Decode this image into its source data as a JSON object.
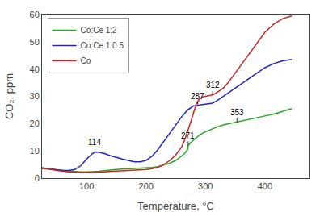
{
  "chart_data": {
    "type": "line",
    "title": "",
    "xlabel": "Temperature, °C",
    "ylabel": "CO₂, ppm",
    "xlim": [
      25,
      475
    ],
    "ylim": [
      0,
      60
    ],
    "xticks": [
      100,
      200,
      300,
      400
    ],
    "yticks": [
      0,
      10,
      20,
      30,
      40,
      50,
      60
    ],
    "grid": false,
    "legend": "upper left",
    "series": [
      {
        "name": "Co:Ce 1:2",
        "color": "#22aa22",
        "x": [
          25,
          35,
          50,
          60,
          70,
          80,
          90,
          100,
          110,
          120,
          130,
          140,
          150,
          160,
          170,
          180,
          190,
          200,
          210,
          220,
          230,
          240,
          250,
          260,
          265,
          270,
          271,
          275,
          280,
          285,
          290,
          295,
          300,
          310,
          320,
          330,
          340,
          350,
          353,
          360,
          370,
          380,
          390,
          400,
          415,
          430,
          445
        ],
        "values": [
          3.5,
          3.3,
          2.9,
          2.7,
          2.5,
          2.4,
          2.3,
          2.3,
          2.3,
          2.5,
          2.7,
          3.0,
          3.2,
          3.3,
          3.4,
          3.4,
          3.5,
          3.7,
          3.9,
          4.2,
          4.8,
          5.5,
          6.5,
          8.0,
          9.0,
          10.5,
          12.0,
          13.0,
          14.0,
          15.0,
          15.8,
          16.5,
          17.0,
          18.0,
          18.8,
          19.5,
          20.0,
          20.3,
          20.5,
          20.8,
          21.3,
          21.8,
          22.3,
          22.8,
          23.5,
          24.5,
          25.5
        ]
      },
      {
        "name": "Co:Ce 1:0.5",
        "color": "#2222cc",
        "x": [
          25,
          35,
          50,
          60,
          70,
          80,
          90,
          100,
          110,
          114,
          120,
          130,
          140,
          150,
          160,
          170,
          180,
          190,
          200,
          210,
          220,
          230,
          240,
          250,
          260,
          270,
          280,
          287,
          290,
          295,
          300,
          305,
          310,
          312,
          320,
          330,
          340,
          350,
          360,
          370,
          380,
          390,
          400,
          415,
          430,
          445
        ],
        "values": [
          3.8,
          3.5,
          3.0,
          2.8,
          2.8,
          3.2,
          4.5,
          7.0,
          9.0,
          9.5,
          9.5,
          9.0,
          8.2,
          7.5,
          7.0,
          6.5,
          6.0,
          6.0,
          6.5,
          8.0,
          10.5,
          13.5,
          16.5,
          19.5,
          22.5,
          25.0,
          26.5,
          26.5,
          26.8,
          27.0,
          27.2,
          27.3,
          27.5,
          27.5,
          28.5,
          30.0,
          31.5,
          33.0,
          34.5,
          36.0,
          37.5,
          39.0,
          40.5,
          42.0,
          43.0,
          43.5
        ]
      },
      {
        "name": "Co",
        "color": "#cc2222",
        "x": [
          25,
          35,
          50,
          60,
          70,
          80,
          90,
          100,
          110,
          120,
          130,
          140,
          150,
          160,
          170,
          180,
          190,
          200,
          210,
          220,
          230,
          240,
          250,
          260,
          265,
          270,
          275,
          280,
          285,
          290,
          295,
          300,
          305,
          310,
          312,
          320,
          330,
          340,
          350,
          360,
          370,
          380,
          390,
          400,
          415,
          430,
          445
        ],
        "values": [
          3.8,
          3.5,
          2.8,
          2.5,
          2.3,
          2.2,
          2.1,
          2.1,
          2.1,
          2.2,
          2.3,
          2.4,
          2.5,
          2.6,
          2.7,
          2.8,
          3.0,
          3.2,
          3.5,
          4.0,
          5.0,
          6.5,
          8.5,
          11.5,
          14.0,
          17.0,
          20.5,
          24.0,
          27.5,
          29.0,
          29.8,
          30.0,
          30.2,
          30.3,
          30.5,
          31.5,
          33.0,
          35.5,
          38.5,
          41.5,
          44.5,
          47.5,
          50.5,
          53.5,
          56.5,
          58.5,
          59.5
        ]
      }
    ],
    "annotations": [
      {
        "text": "114",
        "x": 114,
        "y": 9.5
      },
      {
        "text": "287",
        "x": 287,
        "y": 26.5
      },
      {
        "text": "271",
        "x": 271,
        "y": 12.0
      },
      {
        "text": "312",
        "x": 312,
        "y": 30.5
      },
      {
        "text": "353",
        "x": 353,
        "y": 20.5
      }
    ]
  }
}
